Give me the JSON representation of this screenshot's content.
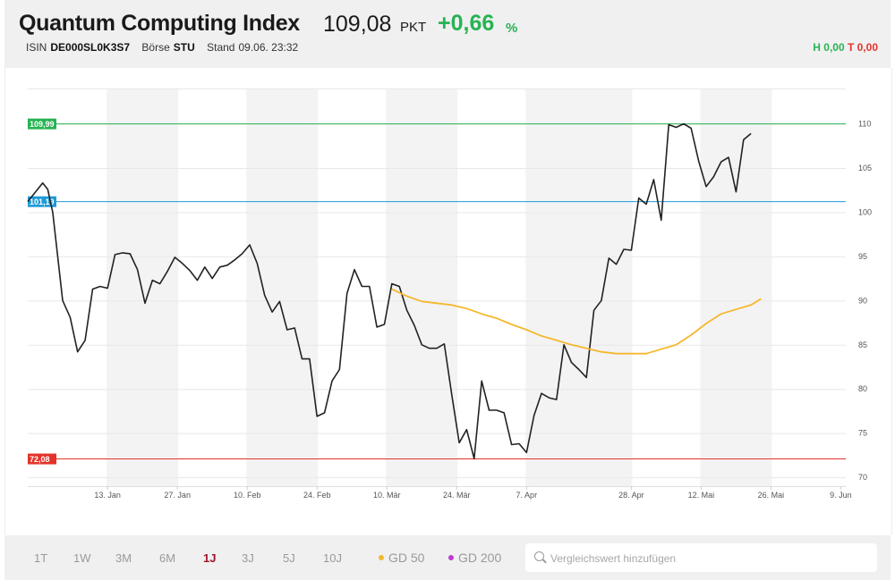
{
  "header": {
    "title": "Quantum Computing Index",
    "price": "109,08",
    "unit": "PKT",
    "change": "+0,66",
    "change_unit": "%",
    "isin_label": "ISIN",
    "isin": "DE000SL0K3S7",
    "exchange_label": "Börse",
    "exchange": "STU",
    "stand_label": "Stand",
    "stand": "09.06. 23:32",
    "high_label": "H 0,00",
    "low_label": "T 0,00"
  },
  "chart_data": {
    "type": "line",
    "x_tick_labels": [
      "13. Jan",
      "27. Jan",
      "10. Feb",
      "24. Feb",
      "10. Mär",
      "24. Mär",
      "7. Apr",
      "28. Apr",
      "12. Mai",
      "26. Mai",
      "9. Jun"
    ],
    "x_tick_days": [
      13,
      27,
      41,
      55,
      69,
      83,
      97,
      118,
      132,
      146,
      160
    ],
    "y_ticks": [
      70,
      75,
      80,
      85,
      90,
      95,
      100,
      105,
      110
    ],
    "ylim": [
      69,
      114
    ],
    "xlim": [
      -3,
      161
    ],
    "reference_lines": [
      {
        "label": "109,99",
        "value": 109.99,
        "color": "#27b352"
      },
      {
        "label": "101,19",
        "value": 101.19,
        "color": "#1e9bd7"
      },
      {
        "label": "72,08",
        "value": 72.08,
        "color": "#e2332a"
      }
    ],
    "series": [
      {
        "color": "#222222",
        "points": [
          [
            -3,
            101.2
          ],
          [
            0,
            103.3
          ],
          [
            1,
            102.6
          ],
          [
            2,
            100
          ],
          [
            4,
            90.0
          ],
          [
            5.5,
            88.1
          ],
          [
            7,
            84.2
          ],
          [
            8.5,
            85.5
          ],
          [
            10,
            91.3
          ],
          [
            11.5,
            91.6
          ],
          [
            13,
            91.4
          ],
          [
            14.5,
            95.2
          ],
          [
            16,
            95.4
          ],
          [
            17.5,
            95.3
          ],
          [
            19,
            93.5
          ],
          [
            20.5,
            89.7
          ],
          [
            22,
            92.3
          ],
          [
            23.5,
            91.9
          ],
          [
            25,
            93.3
          ],
          [
            26.5,
            94.9
          ],
          [
            28,
            94.2
          ],
          [
            29.5,
            93.4
          ],
          [
            31,
            92.3
          ],
          [
            32.5,
            93.8
          ],
          [
            34,
            92.5
          ],
          [
            35.5,
            93.8
          ],
          [
            37,
            94.0
          ],
          [
            38.5,
            94.6
          ],
          [
            40,
            95.3
          ],
          [
            41.5,
            96.3
          ],
          [
            43,
            94.2
          ],
          [
            44.5,
            90.6
          ],
          [
            46,
            88.7
          ],
          [
            47.5,
            89.9
          ],
          [
            49,
            86.7
          ],
          [
            50.5,
            86.9
          ],
          [
            52,
            83.4
          ],
          [
            53.5,
            83.4
          ],
          [
            55,
            76.9
          ],
          [
            56.5,
            77.3
          ],
          [
            58,
            80.9
          ],
          [
            59.5,
            82.2
          ],
          [
            61,
            90.8
          ],
          [
            62.5,
            93.5
          ],
          [
            64,
            91.6
          ],
          [
            65.5,
            91.6
          ],
          [
            67,
            87.0
          ],
          [
            68.5,
            87.3
          ],
          [
            70,
            91.9
          ],
          [
            71.5,
            91.6
          ],
          [
            73,
            88.9
          ],
          [
            74.5,
            87.2
          ],
          [
            76,
            85.0
          ],
          [
            77.5,
            84.6
          ],
          [
            79,
            84.6
          ],
          [
            80.5,
            85.1
          ],
          [
            82,
            79.4
          ],
          [
            83.5,
            73.9
          ],
          [
            85,
            75.4
          ],
          [
            86.5,
            72.1
          ],
          [
            88,
            80.9
          ],
          [
            89.5,
            77.6
          ],
          [
            91,
            77.6
          ],
          [
            92.5,
            77.3
          ],
          [
            94,
            73.7
          ],
          [
            95.5,
            73.8
          ],
          [
            97,
            72.8
          ],
          [
            98.5,
            77.0
          ],
          [
            100,
            79.5
          ],
          [
            101.5,
            79.0
          ],
          [
            103,
            78.8
          ],
          [
            104.5,
            85.0
          ],
          [
            106,
            83.0
          ],
          [
            107.5,
            82.2
          ],
          [
            109,
            81.3
          ],
          [
            110.5,
            88.9
          ],
          [
            112,
            90.0
          ],
          [
            113.5,
            94.8
          ],
          [
            115,
            94.1
          ],
          [
            116.5,
            95.8
          ],
          [
            118,
            95.7
          ],
          [
            119.5,
            101.6
          ],
          [
            121,
            100.9
          ],
          [
            122.5,
            103.7
          ],
          [
            124,
            99.1
          ],
          [
            125.5,
            109.9
          ],
          [
            127,
            109.6
          ],
          [
            128.5,
            110.0
          ],
          [
            130,
            109.5
          ],
          [
            131.5,
            105.8
          ],
          [
            133,
            102.9
          ],
          [
            134.5,
            104.0
          ],
          [
            136,
            105.7
          ],
          [
            137.5,
            106.2
          ],
          [
            139,
            102.3
          ],
          [
            140.5,
            108.2
          ],
          [
            142,
            108.9
          ]
        ]
      },
      {
        "name": "GD 50",
        "color": "#f5b82e",
        "points": [
          [
            70,
            91.3
          ],
          [
            73,
            90.5
          ],
          [
            76,
            89.9
          ],
          [
            79,
            89.7
          ],
          [
            82,
            89.5
          ],
          [
            85,
            89.1
          ],
          [
            88,
            88.5
          ],
          [
            91,
            88.0
          ],
          [
            94,
            87.3
          ],
          [
            97,
            86.7
          ],
          [
            100,
            86.0
          ],
          [
            103,
            85.5
          ],
          [
            106,
            85.0
          ],
          [
            109,
            84.6
          ],
          [
            112,
            84.2
          ],
          [
            115,
            84.0
          ],
          [
            118,
            84.0
          ],
          [
            121,
            84.0
          ],
          [
            124,
            84.5
          ],
          [
            127,
            85.0
          ],
          [
            130,
            86.1
          ],
          [
            133,
            87.4
          ],
          [
            136,
            88.5
          ],
          [
            139,
            89.0
          ],
          [
            142,
            89.5
          ],
          [
            144,
            90.2
          ]
        ]
      }
    ]
  },
  "footer": {
    "periods": [
      "1T",
      "1W",
      "3M",
      "6M",
      "1J",
      "3J",
      "5J",
      "10J"
    ],
    "active_period": "1J",
    "gd50": {
      "label": "GD 50",
      "color": "#f5b82e"
    },
    "gd200": {
      "label": "GD 200",
      "color": "#c03bd0"
    },
    "search_placeholder": "Vergleichswert hinzufügen"
  }
}
